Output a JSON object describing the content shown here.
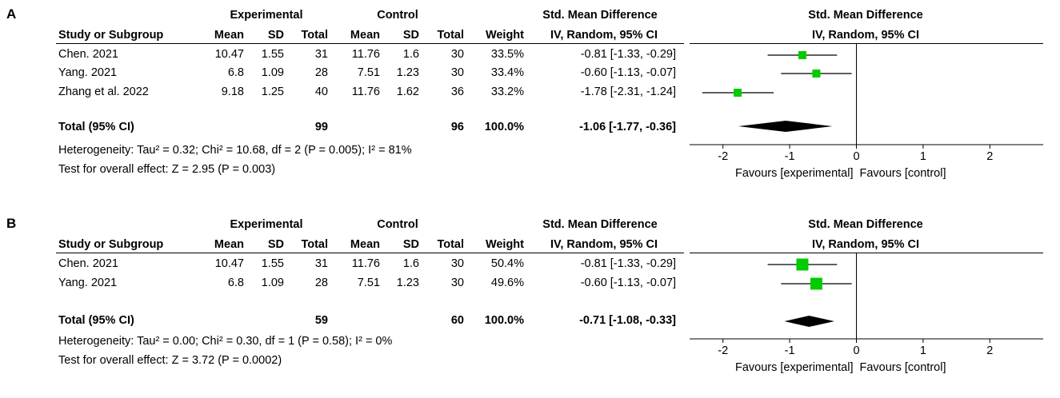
{
  "colors": {
    "square": "#00cc00",
    "line": "#000000",
    "background": "#ffffff"
  },
  "chart_data": [
    {
      "type": "forest",
      "panel_label": "A",
      "group1": "Experimental",
      "group2": "Control",
      "effect_header": "Std. Mean Difference",
      "method_header": "IV, Random, 95% CI",
      "columns": [
        "Study or Subgroup",
        "Mean",
        "SD",
        "Total",
        "Mean",
        "SD",
        "Total",
        "Weight"
      ],
      "studies": [
        {
          "name": "Chen. 2021",
          "e_mean": "10.47",
          "e_sd": "1.55",
          "e_total": "31",
          "c_mean": "11.76",
          "c_sd": "1.6",
          "c_total": "30",
          "weight": "33.5%",
          "ci_text": "-0.81 [-1.33, -0.29]",
          "est": -0.81,
          "lo": -1.33,
          "hi": -0.29,
          "w": 33.5
        },
        {
          "name": "Yang. 2021",
          "e_mean": "6.8",
          "e_sd": "1.09",
          "e_total": "28",
          "c_mean": "7.51",
          "c_sd": "1.23",
          "c_total": "30",
          "weight": "33.4%",
          "ci_text": "-0.60 [-1.13, -0.07]",
          "est": -0.6,
          "lo": -1.13,
          "hi": -0.07,
          "w": 33.4
        },
        {
          "name": "Zhang et al. 2022",
          "e_mean": "9.18",
          "e_sd": "1.25",
          "e_total": "40",
          "c_mean": "11.76",
          "c_sd": "1.62",
          "c_total": "36",
          "weight": "33.2%",
          "ci_text": "-1.78 [-2.31, -1.24]",
          "est": -1.78,
          "lo": -2.31,
          "hi": -1.24,
          "w": 33.2
        }
      ],
      "total": {
        "label": "Total (95% CI)",
        "e_total": "99",
        "c_total": "96",
        "weight": "100.0%",
        "ci_text": "-1.06 [-1.77, -0.36]",
        "est": -1.06,
        "lo": -1.77,
        "hi": -0.36
      },
      "heterogeneity": "Heterogeneity: Tau² = 0.32; Chi² = 10.68, df = 2 (P = 0.005); I² = 81%",
      "overall_test": "Test for overall effect: Z = 2.95 (P = 0.003)",
      "xlim": [
        -2.5,
        2.8
      ],
      "xticks": [
        -2,
        -1,
        0,
        1,
        2
      ],
      "favours_left": "Favours [experimental]",
      "favours_right": "Favours [control]"
    },
    {
      "type": "forest",
      "panel_label": "B",
      "group1": "Experimental",
      "group2": "Control",
      "effect_header": "Std. Mean Difference",
      "method_header": "IV, Random, 95% CI",
      "columns": [
        "Study or Subgroup",
        "Mean",
        "SD",
        "Total",
        "Mean",
        "SD",
        "Total",
        "Weight"
      ],
      "studies": [
        {
          "name": "Chen. 2021",
          "e_mean": "10.47",
          "e_sd": "1.55",
          "e_total": "31",
          "c_mean": "11.76",
          "c_sd": "1.6",
          "c_total": "30",
          "weight": "50.4%",
          "ci_text": "-0.81 [-1.33, -0.29]",
          "est": -0.81,
          "lo": -1.33,
          "hi": -0.29,
          "w": 50.4
        },
        {
          "name": "Yang. 2021",
          "e_mean": "6.8",
          "e_sd": "1.09",
          "e_total": "28",
          "c_mean": "7.51",
          "c_sd": "1.23",
          "c_total": "30",
          "weight": "49.6%",
          "ci_text": "-0.60 [-1.13, -0.07]",
          "est": -0.6,
          "lo": -1.13,
          "hi": -0.07,
          "w": 49.6
        }
      ],
      "total": {
        "label": "Total (95% CI)",
        "e_total": "59",
        "c_total": "60",
        "weight": "100.0%",
        "ci_text": "-0.71 [-1.08, -0.33]",
        "est": -0.71,
        "lo": -1.08,
        "hi": -0.33
      },
      "heterogeneity": "Heterogeneity: Tau² = 0.00; Chi² = 0.30, df = 1 (P = 0.58); I² = 0%",
      "overall_test": "Test for overall effect: Z = 3.72 (P = 0.0002)",
      "xlim": [
        -2.5,
        2.8
      ],
      "xticks": [
        -2,
        -1,
        0,
        1,
        2
      ],
      "favours_left": "Favours [experimental]",
      "favours_right": "Favours [control]"
    }
  ]
}
